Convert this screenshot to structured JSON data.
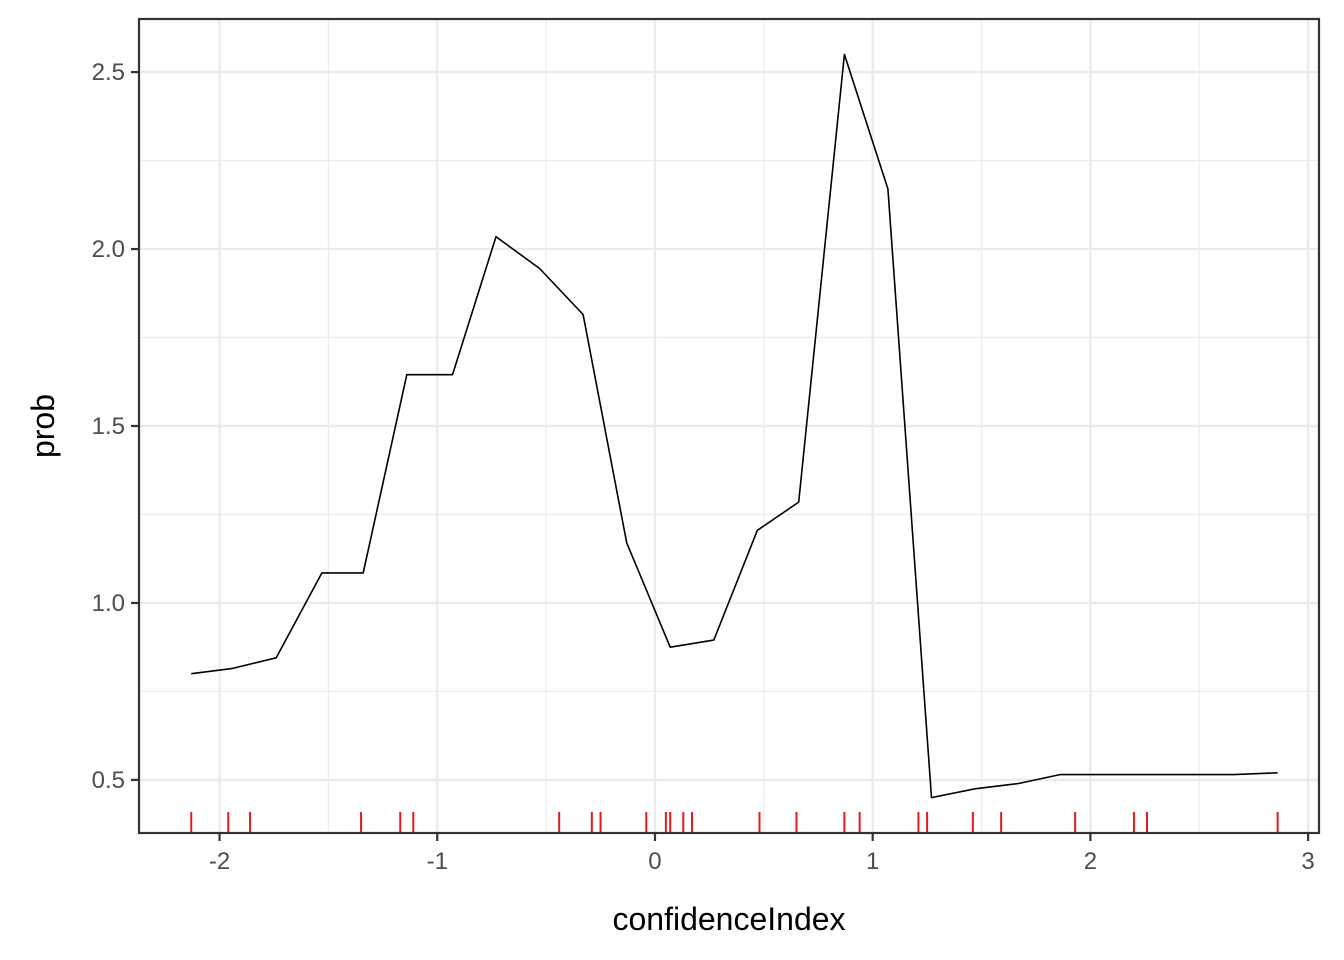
{
  "chart_data": {
    "type": "line",
    "title": "",
    "xlabel": "confidenceIndex",
    "ylabel": "prob",
    "xlim": [
      -2.37,
      3.05
    ],
    "ylim": [
      0.35,
      2.65
    ],
    "x_ticks": [
      -2,
      -1,
      0,
      1,
      2,
      3
    ],
    "x_tick_labels": [
      "-2",
      "-1",
      "0",
      "1",
      "2",
      "3"
    ],
    "x_minor_ticks": [
      -1.5,
      -0.5,
      0.5,
      1.5,
      2.5
    ],
    "y_ticks": [
      0.5,
      1.0,
      1.5,
      2.0,
      2.5
    ],
    "y_tick_labels": [
      "0.5",
      "1.0",
      "1.5",
      "2.0",
      "2.5"
    ],
    "y_minor_ticks": [
      0.75,
      1.25,
      1.75,
      2.25
    ],
    "grid": true,
    "series": [
      {
        "color": "#000000",
        "x": [
          -2.13,
          -1.94,
          -1.74,
          -1.53,
          -1.34,
          -1.14,
          -0.93,
          -0.73,
          -0.53,
          -0.33,
          -0.13,
          0.07,
          0.27,
          0.47,
          0.66,
          0.87,
          1.07,
          1.27,
          1.47,
          1.67,
          1.86,
          2.06,
          2.26,
          2.46,
          2.66,
          2.86
        ],
        "y": [
          0.8,
          0.815,
          0.845,
          1.085,
          1.085,
          1.645,
          1.645,
          2.035,
          1.945,
          1.815,
          1.17,
          0.875,
          0.895,
          1.205,
          1.285,
          2.55,
          2.17,
          0.45,
          0.475,
          0.49,
          0.515,
          0.515,
          0.515,
          0.515,
          0.515,
          0.52
        ]
      }
    ],
    "rug": {
      "color": "#e41a1c",
      "x": [
        -2.13,
        -1.96,
        -1.86,
        -1.35,
        -1.17,
        -1.11,
        -0.44,
        -0.29,
        -0.25,
        -0.04,
        0.05,
        0.07,
        0.13,
        0.17,
        0.48,
        0.65,
        0.87,
        0.94,
        1.21,
        1.25,
        1.46,
        1.59,
        1.93,
        2.2,
        2.26,
        2.86
      ]
    }
  }
}
